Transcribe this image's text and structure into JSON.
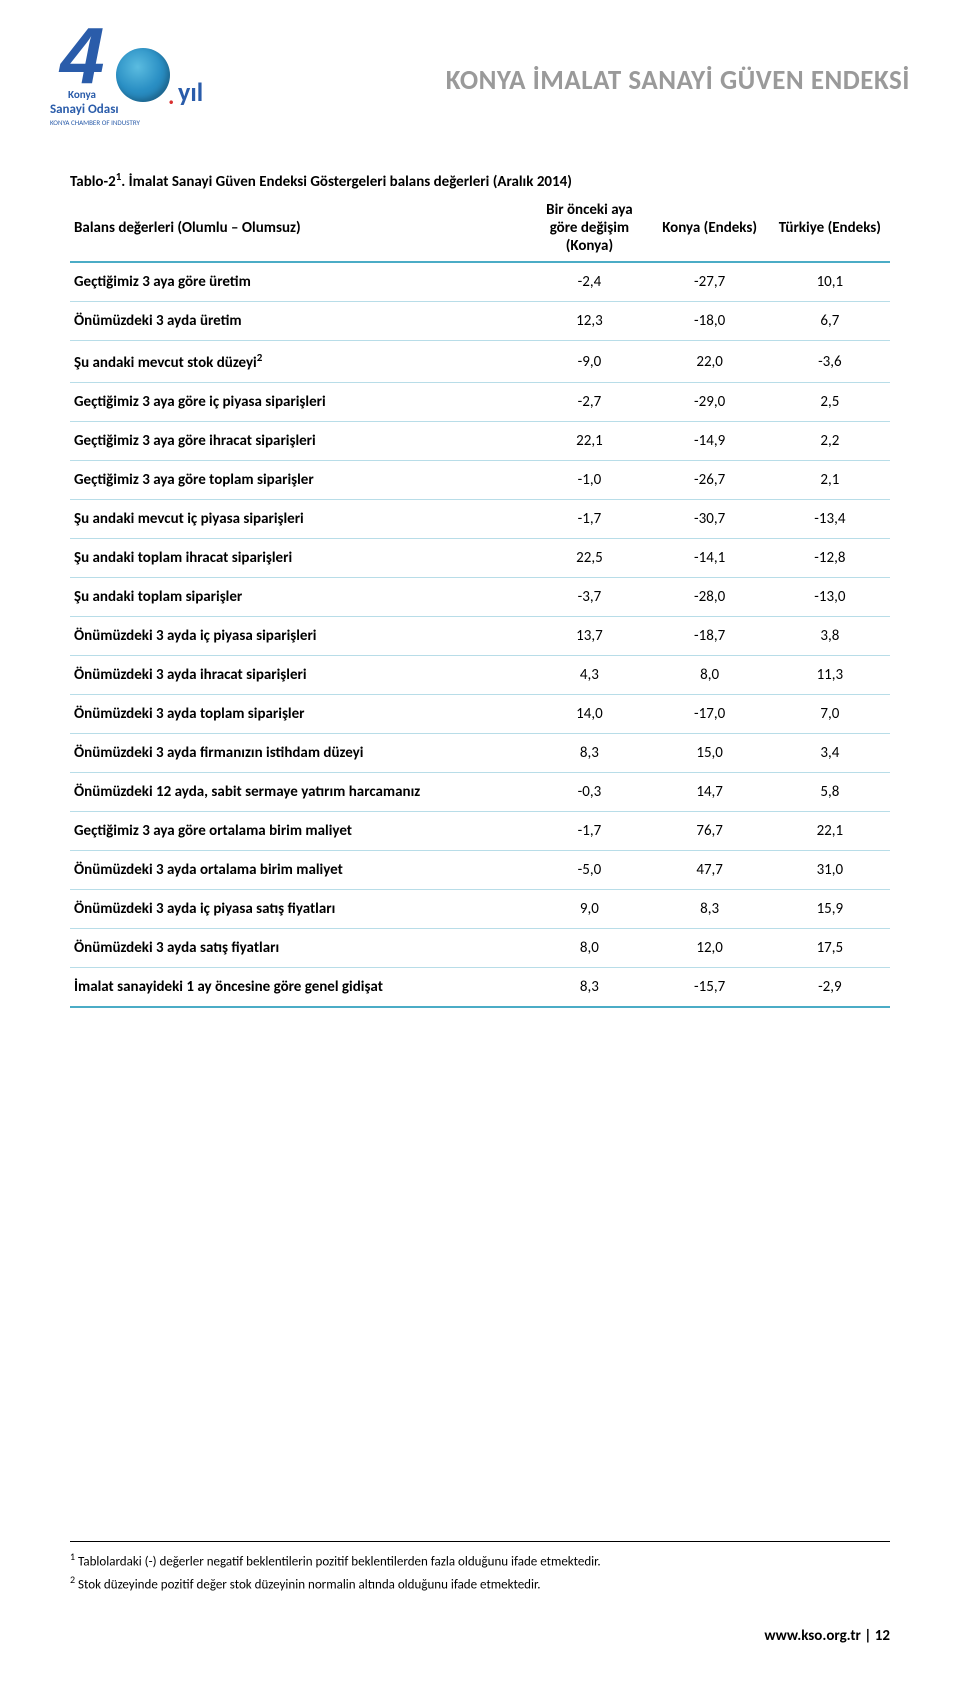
{
  "header": {
    "logo_text_4": "4",
    "logo_text_dot": ".",
    "logo_text_yil": "yıl",
    "logo_sub1": "Sanayi Odası",
    "logo_sub2": "KONYA CHAMBER OF INDUSTRY",
    "logo_konya": "Konya",
    "title": "KONYA İMALAT SANAYİ GÜVEN ENDEKSİ"
  },
  "table": {
    "caption_prefix": "Tablo-2",
    "caption_sup": "1",
    "caption_rest": ". İmalat Sanayi Güven Endeksi Göstergeleri balans değerleri (Aralık 2014)",
    "col0": "Balans değerleri (Olumlu – Olumsuz)",
    "col1": "Bir önceki aya göre değişim (Konya)",
    "col2": "Konya (Endeks)",
    "col3": "Türkiye (Endeks)",
    "rows": [
      {
        "label": "Geçtiğimiz 3 aya göre üretim",
        "v1": "-2,4",
        "v2": "-27,7",
        "v3": "10,1"
      },
      {
        "label": "Önümüzdeki 3 ayda üretim",
        "v1": "12,3",
        "v2": "-18,0",
        "v3": "6,7"
      },
      {
        "label_html": "Şu andaki mevcut stok düzeyi<sup>2</sup>",
        "v1": "-9,0",
        "v2": "22,0",
        "v3": "-3,6"
      },
      {
        "label": "Geçtiğimiz 3 aya göre iç piyasa siparişleri",
        "v1": "-2,7",
        "v2": "-29,0",
        "v3": "2,5"
      },
      {
        "label": "Geçtiğimiz 3 aya göre ihracat siparişleri",
        "v1": "22,1",
        "v2": "-14,9",
        "v3": "2,2"
      },
      {
        "label": "Geçtiğimiz 3 aya göre toplam siparişler",
        "v1": "-1,0",
        "v2": "-26,7",
        "v3": "2,1"
      },
      {
        "label": "Şu andaki mevcut iç piyasa siparişleri",
        "v1": "-1,7",
        "v2": "-30,7",
        "v3": "-13,4"
      },
      {
        "label": "Şu andaki toplam ihracat siparişleri",
        "v1": "22,5",
        "v2": "-14,1",
        "v3": "-12,8"
      },
      {
        "label": "Şu andaki toplam siparişler",
        "v1": "-3,7",
        "v2": "-28,0",
        "v3": "-13,0"
      },
      {
        "label": "Önümüzdeki 3 ayda iç piyasa siparişleri",
        "v1": "13,7",
        "v2": "-18,7",
        "v3": "3,8"
      },
      {
        "label": "Önümüzdeki 3 ayda ihracat siparişleri",
        "v1": "4,3",
        "v2": "8,0",
        "v3": "11,3"
      },
      {
        "label": "Önümüzdeki 3 ayda toplam siparişler",
        "v1": "14,0",
        "v2": "-17,0",
        "v3": "7,0"
      },
      {
        "label": "Önümüzdeki 3 ayda firmanızın istihdam düzeyi",
        "v1": "8,3",
        "v2": "15,0",
        "v3": "3,4"
      },
      {
        "label": "Önümüzdeki 12 ayda, sabit sermaye yatırım harcamanız",
        "v1": "-0,3",
        "v2": "14,7",
        "v3": "5,8"
      },
      {
        "label": "Geçtiğimiz 3 aya göre ortalama birim maliyet",
        "v1": "-1,7",
        "v2": "76,7",
        "v3": "22,1"
      },
      {
        "label": "Önümüzdeki 3 ayda ortalama birim maliyet",
        "v1": "-5,0",
        "v2": "47,7",
        "v3": "31,0"
      },
      {
        "label": "Önümüzdeki 3 ayda iç piyasa satış fiyatları",
        "v1": "9,0",
        "v2": "8,3",
        "v3": "15,9"
      },
      {
        "label": "Önümüzdeki 3 ayda satış fiyatları",
        "v1": "8,0",
        "v2": "12,0",
        "v3": "17,5"
      },
      {
        "label": "İmalat sanayideki 1 ay öncesine göre genel gidişat",
        "v1": "8,3",
        "v2": "-15,7",
        "v3": "-2,9"
      }
    ]
  },
  "footnotes": {
    "fn1_sup": "1",
    "fn1": " Tablolardaki (-) değerler negatif beklentilerin pozitif beklentilerden fazla olduğunu ifade etmektedir.",
    "fn2_sup": "2",
    "fn2": " Stok düzeyinde pozitif değer stok düzeyinin normalin altında olduğunu ifade etmektedir."
  },
  "footer": {
    "url": "www.kso.org.tr",
    "sep": " | ",
    "page": "12"
  },
  "colors": {
    "header_title": "#9a9a9a",
    "logo_blue": "#2a5caa",
    "logo_red": "#d93030",
    "table_border_heavy": "#4bacc6",
    "table_border_light": "#b8dde8"
  }
}
